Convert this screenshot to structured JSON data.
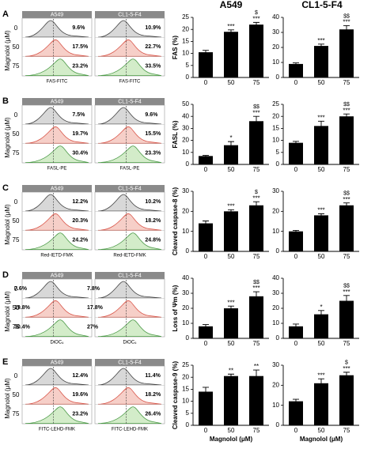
{
  "column_titles": [
    "A549",
    "CL1-5-F4"
  ],
  "flow_panels": [
    {
      "letter": "A",
      "ylabel": "Magnolol (μM)",
      "doses": [
        "0",
        "50",
        "75"
      ],
      "columns": [
        {
          "title": "A549",
          "percents": [
            "9.6%",
            "17.5%",
            "23.2%"
          ],
          "xlabel": "FAS-FITC"
        },
        {
          "title": "CL1-5-F4",
          "percents": [
            "10.9%",
            "22.7%",
            "33.5%"
          ],
          "xlabel": "FAS-FITC"
        }
      ]
    },
    {
      "letter": "B",
      "ylabel": "Magnolol (μM)",
      "doses": [
        "0",
        "50",
        "75"
      ],
      "columns": [
        {
          "title": "A549",
          "percents": [
            "7.5%",
            "19.7%",
            "30.4%"
          ],
          "xlabel": "FASL-PE"
        },
        {
          "title": "CL1-5-F4",
          "percents": [
            "9.6%",
            "15.5%",
            "23.3%"
          ],
          "xlabel": "FASL-PE"
        }
      ]
    },
    {
      "letter": "C",
      "ylabel": "Magnolol (μM)",
      "doses": [
        "0",
        "50",
        "75"
      ],
      "columns": [
        {
          "title": "A549",
          "percents": [
            "12.2%",
            "20.3%",
            "24.2%"
          ],
          "xlabel": "Red-IETD-FMK"
        },
        {
          "title": "CL1-5-F4",
          "percents": [
            "10.2%",
            "18.2%",
            "24.8%"
          ],
          "xlabel": "Red-IETD-FMK"
        }
      ]
    },
    {
      "letter": "D",
      "ylabel": "Magnolol (μM)",
      "doses": [
        "0",
        "50",
        "75"
      ],
      "columns": [
        {
          "title": "A549",
          "percents": [
            "7.6%",
            "19.8%",
            "30.4%"
          ],
          "xlabel": "DiOC₆"
        },
        {
          "title": "CL1-5-F4",
          "percents": [
            "7.8%",
            "17.8%",
            "27%"
          ],
          "xlabel": "DiOC₆"
        }
      ]
    },
    {
      "letter": "E",
      "ylabel": "Magnolol (μM)",
      "doses": [
        "0",
        "50",
        "75"
      ],
      "columns": [
        {
          "title": "A549",
          "percents": [
            "12.4%",
            "19.6%",
            "23.2%"
          ],
          "xlabel": "FITC-LEHD-FMK"
        },
        {
          "title": "CL1-5-F4",
          "percents": [
            "11.4%",
            "18.2%",
            "26.4%"
          ],
          "xlabel": "FITC-LEHD-FMK"
        }
      ]
    }
  ],
  "chart_data": [
    {
      "type": "bar",
      "ylabel": "FAS (%)",
      "categories": [
        "0",
        "50",
        "75"
      ],
      "values": [
        10.5,
        19,
        22
      ],
      "errors": [
        0.8,
        0.8,
        0.9
      ],
      "stars": [
        null,
        "***",
        "***"
      ],
      "dollars": [
        null,
        null,
        "$"
      ],
      "color": "#000000",
      "ylim": [
        0,
        25
      ],
      "yticks": [
        0,
        5,
        10,
        15,
        20,
        25
      ]
    },
    {
      "type": "bar",
      "categories": [
        "0",
        "50",
        "75"
      ],
      "values": [
        9,
        21,
        32
      ],
      "errors": [
        0.7,
        1.2,
        2.5
      ],
      "stars": [
        null,
        "***",
        "***"
      ],
      "dollars": [
        null,
        null,
        "$$"
      ],
      "color": "#000000",
      "ylim": [
        0,
        40
      ],
      "yticks": [
        0,
        10,
        20,
        30,
        40
      ]
    },
    {
      "type": "bar",
      "ylabel": "FASL (%)",
      "categories": [
        "0",
        "50",
        "75"
      ],
      "values": [
        7,
        16,
        36
      ],
      "errors": [
        0.5,
        3,
        4
      ],
      "stars": [
        null,
        "*",
        "***"
      ],
      "dollars": [
        null,
        null,
        "$$"
      ],
      "color": "#000000",
      "ylim": [
        0,
        50
      ],
      "yticks": [
        0,
        10,
        20,
        30,
        40,
        50
      ]
    },
    {
      "type": "bar",
      "categories": [
        "0",
        "50",
        "75"
      ],
      "values": [
        9,
        16,
        20
      ],
      "errors": [
        0.6,
        2,
        1
      ],
      "stars": [
        null,
        "***",
        "***"
      ],
      "dollars": [
        null,
        null,
        "$$"
      ],
      "color": "#000000",
      "ylim": [
        0,
        25
      ],
      "yticks": [
        0,
        5,
        10,
        15,
        20,
        25
      ]
    },
    {
      "type": "bar",
      "ylabel": "Cleaved caspase-8 (%)",
      "categories": [
        "0",
        "50",
        "75"
      ],
      "values": [
        14,
        20,
        23
      ],
      "errors": [
        1.2,
        0.8,
        1.8
      ],
      "stars": [
        null,
        "***",
        "***"
      ],
      "dollars": [
        null,
        null,
        "$"
      ],
      "color": "#000000",
      "ylim": [
        0,
        30
      ],
      "yticks": [
        0,
        10,
        20,
        30
      ]
    },
    {
      "type": "bar",
      "categories": [
        "0",
        "50",
        "75"
      ],
      "values": [
        10,
        18,
        23
      ],
      "errors": [
        0.5,
        0.8,
        1.2
      ],
      "stars": [
        null,
        "***",
        "***"
      ],
      "dollars": [
        null,
        null,
        "$$"
      ],
      "color": "#000000",
      "ylim": [
        0,
        30
      ],
      "yticks": [
        0,
        10,
        20,
        30
      ]
    },
    {
      "type": "bar",
      "ylabel": "Loss of Ψm (%)",
      "categories": [
        "0",
        "50",
        "75"
      ],
      "values": [
        8,
        20,
        28
      ],
      "errors": [
        1.2,
        1.5,
        3
      ],
      "stars": [
        null,
        "***",
        "***"
      ],
      "dollars": [
        null,
        null,
        "$$"
      ],
      "color": "#000000",
      "ylim": [
        0,
        40
      ],
      "yticks": [
        0,
        10,
        20,
        30,
        40
      ]
    },
    {
      "type": "bar",
      "categories": [
        "0",
        "50",
        "75"
      ],
      "values": [
        8,
        16,
        25
      ],
      "errors": [
        1.5,
        2.5,
        3.5
      ],
      "stars": [
        null,
        "*",
        "***"
      ],
      "dollars": [
        null,
        null,
        "$$"
      ],
      "color": "#000000",
      "ylim": [
        0,
        40
      ],
      "yticks": [
        0,
        10,
        20,
        30,
        40
      ]
    },
    {
      "type": "bar",
      "ylabel": "Cleaved caspase-9 (%)",
      "xlabel": "Magnolol (μM)",
      "categories": [
        "0",
        "50",
        "75"
      ],
      "values": [
        14,
        20.5,
        20.5
      ],
      "errors": [
        1.8,
        0.8,
        2.5
      ],
      "stars": [
        null,
        "**",
        "**"
      ],
      "dollars": [
        null,
        null,
        null
      ],
      "color": "#000000",
      "ylim": [
        0,
        25
      ],
      "yticks": [
        0,
        5,
        10,
        15,
        20,
        25
      ]
    },
    {
      "type": "bar",
      "xlabel": "Magnolol (μM)",
      "categories": [
        "0",
        "50",
        "75"
      ],
      "values": [
        12,
        21,
        25
      ],
      "errors": [
        1,
        2.2,
        1.5
      ],
      "stars": [
        null,
        "***",
        "***"
      ],
      "dollars": [
        null,
        null,
        "$"
      ],
      "color": "#000000",
      "ylim": [
        0,
        30
      ],
      "yticks": [
        0,
        10,
        20,
        30
      ]
    }
  ]
}
